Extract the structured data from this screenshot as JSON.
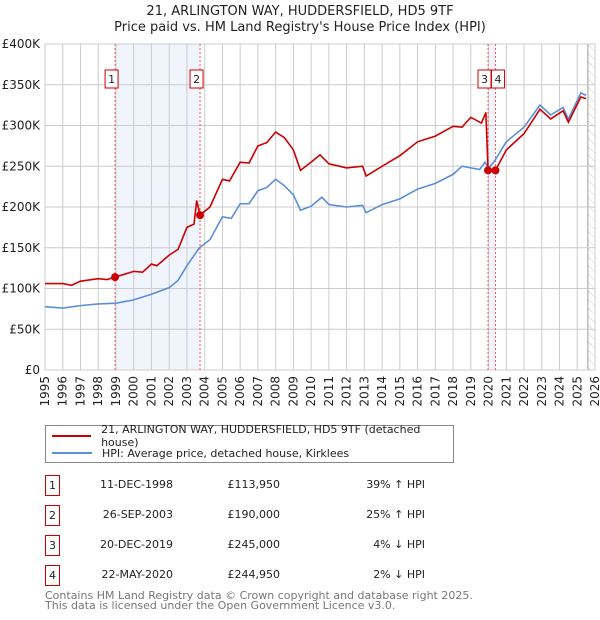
{
  "chart_data": {
    "type": "line",
    "title": "21, ARLINGTON WAY, HUDDERSFIELD, HD5 9TF",
    "subtitle": "Price paid vs. HM Land Registry's House Price Index (HPI)",
    "xlim": [
      1995,
      2026
    ],
    "ylim": [
      0,
      400000
    ],
    "x_ticks": [
      "1995",
      "1996",
      "1997",
      "1998",
      "1999",
      "2000",
      "2001",
      "2002",
      "2003",
      "2004",
      "2005",
      "2006",
      "2007",
      "2008",
      "2009",
      "2010",
      "2011",
      "2012",
      "2013",
      "2014",
      "2015",
      "2016",
      "2017",
      "2018",
      "2019",
      "2020",
      "2021",
      "2022",
      "2023",
      "2024",
      "2025",
      "2026"
    ],
    "y_ticks": [
      {
        "v": 0,
        "label": "£0"
      },
      {
        "v": 50000,
        "label": "£50K"
      },
      {
        "v": 100000,
        "label": "£100K"
      },
      {
        "v": 150000,
        "label": "£150K"
      },
      {
        "v": 200000,
        "label": "£200K"
      },
      {
        "v": 250000,
        "label": "£250K"
      },
      {
        "v": 300000,
        "label": "£300K"
      },
      {
        "v": 350000,
        "label": "£350K"
      },
      {
        "v": 400000,
        "label": "£400K"
      }
    ],
    "grid": true,
    "legend_placement": "below",
    "series": [
      {
        "name": "21, ARLINGTON WAY, HUDDERSFIELD, HD5 9TF (detached house)",
        "color": "#cc0000",
        "points": [
          [
            1995,
            106000
          ],
          [
            1996,
            106000
          ],
          [
            1996.5,
            104000
          ],
          [
            1997,
            109000
          ],
          [
            1998,
            112000
          ],
          [
            1998.5,
            111000
          ],
          [
            1998.95,
            113950
          ],
          [
            2000,
            121000
          ],
          [
            2000.5,
            120000
          ],
          [
            2001,
            130000
          ],
          [
            2001.3,
            128000
          ],
          [
            2002,
            141000
          ],
          [
            2002.5,
            148000
          ],
          [
            2003,
            175000
          ],
          [
            2003.4,
            179000
          ],
          [
            2003.55,
            208000
          ],
          [
            2003.74,
            190000
          ],
          [
            2004.3,
            200000
          ],
          [
            2005,
            234000
          ],
          [
            2005.4,
            232000
          ],
          [
            2006,
            255000
          ],
          [
            2006.5,
            254000
          ],
          [
            2007,
            275000
          ],
          [
            2007.5,
            279000
          ],
          [
            2008,
            292000
          ],
          [
            2008.5,
            285000
          ],
          [
            2009,
            270000
          ],
          [
            2009.4,
            245000
          ],
          [
            2010,
            255000
          ],
          [
            2010.5,
            264000
          ],
          [
            2011,
            253000
          ],
          [
            2012,
            248000
          ],
          [
            2012.9,
            250000
          ],
          [
            2013.1,
            238000
          ],
          [
            2014,
            250000
          ],
          [
            2015,
            263000
          ],
          [
            2016,
            280000
          ],
          [
            2017,
            287000
          ],
          [
            2018,
            299000
          ],
          [
            2018.5,
            298000
          ],
          [
            2019,
            310000
          ],
          [
            2019.6,
            303000
          ],
          [
            2019.85,
            316000
          ],
          [
            2019.97,
            245000
          ],
          [
            2020.39,
            244950
          ],
          [
            2021,
            270000
          ],
          [
            2022,
            290000
          ],
          [
            2022.9,
            320000
          ],
          [
            2023.5,
            308000
          ],
          [
            2024.2,
            318000
          ],
          [
            2024.5,
            304000
          ],
          [
            2025.2,
            335000
          ],
          [
            2025.5,
            333000
          ]
        ]
      },
      {
        "name": "HPI: Average price, detached house, Kirklees",
        "color": "#5b8fd4",
        "points": [
          [
            1995,
            77700
          ],
          [
            1996,
            76000
          ],
          [
            1997,
            79000
          ],
          [
            1998,
            81000
          ],
          [
            1999,
            82000
          ],
          [
            2000,
            86000
          ],
          [
            2001,
            93000
          ],
          [
            2002,
            101000
          ],
          [
            2002.5,
            110000
          ],
          [
            2003,
            128000
          ],
          [
            2003.7,
            150000
          ],
          [
            2004.3,
            160000
          ],
          [
            2005,
            188000
          ],
          [
            2005.5,
            186000
          ],
          [
            2006,
            204000
          ],
          [
            2006.5,
            204000
          ],
          [
            2007,
            220000
          ],
          [
            2007.5,
            224000
          ],
          [
            2008,
            234000
          ],
          [
            2008.5,
            226000
          ],
          [
            2009,
            215000
          ],
          [
            2009.4,
            196000
          ],
          [
            2010,
            201000
          ],
          [
            2010.6,
            212000
          ],
          [
            2011,
            203000
          ],
          [
            2012,
            200000
          ],
          [
            2012.9,
            202000
          ],
          [
            2013.1,
            193000
          ],
          [
            2014,
            203000
          ],
          [
            2015,
            210000
          ],
          [
            2016,
            222000
          ],
          [
            2017,
            229000
          ],
          [
            2018,
            240000
          ],
          [
            2018.5,
            250000
          ],
          [
            2019.5,
            246000
          ],
          [
            2019.8,
            255000
          ],
          [
            2020,
            248000
          ],
          [
            2020.3,
            255000
          ],
          [
            2021,
            280000
          ],
          [
            2022,
            298000
          ],
          [
            2022.9,
            325000
          ],
          [
            2023.5,
            313000
          ],
          [
            2024.2,
            322000
          ],
          [
            2024.5,
            308000
          ],
          [
            2025.2,
            340000
          ],
          [
            2025.5,
            337000
          ]
        ]
      }
    ],
    "sales": [
      {
        "n": "1",
        "x": 1998.95,
        "price": 113950
      },
      {
        "n": "2",
        "x": 2003.74,
        "price": 190000
      },
      {
        "n": "3",
        "x": 2019.97,
        "price": 245000
      },
      {
        "n": "4",
        "x": 2020.39,
        "price": 244950
      }
    ],
    "forecast_hatch_from": 2025.6
  },
  "legend": {
    "property": "21, ARLINGTON WAY, HUDDERSFIELD, HD5 9TF (detached house)",
    "hpi": "HPI: Average price, detached house, Kirklees"
  },
  "transactions": [
    {
      "n": "1",
      "date": "11-DEC-1998",
      "price": "£113,950",
      "hpi": "39% ↑ HPI"
    },
    {
      "n": "2",
      "date": "26-SEP-2003",
      "price": "£190,000",
      "hpi": "25% ↑ HPI"
    },
    {
      "n": "3",
      "date": "20-DEC-2019",
      "price": "£245,000",
      "hpi": "4% ↓ HPI"
    },
    {
      "n": "4",
      "date": "22-MAY-2020",
      "price": "£244,950",
      "hpi": "2% ↓ HPI"
    }
  ],
  "footer": {
    "line1": "Contains HM Land Registry data © Crown copyright and database right 2025.",
    "line2": "This data is licensed under the Open Government Licence v3.0."
  }
}
